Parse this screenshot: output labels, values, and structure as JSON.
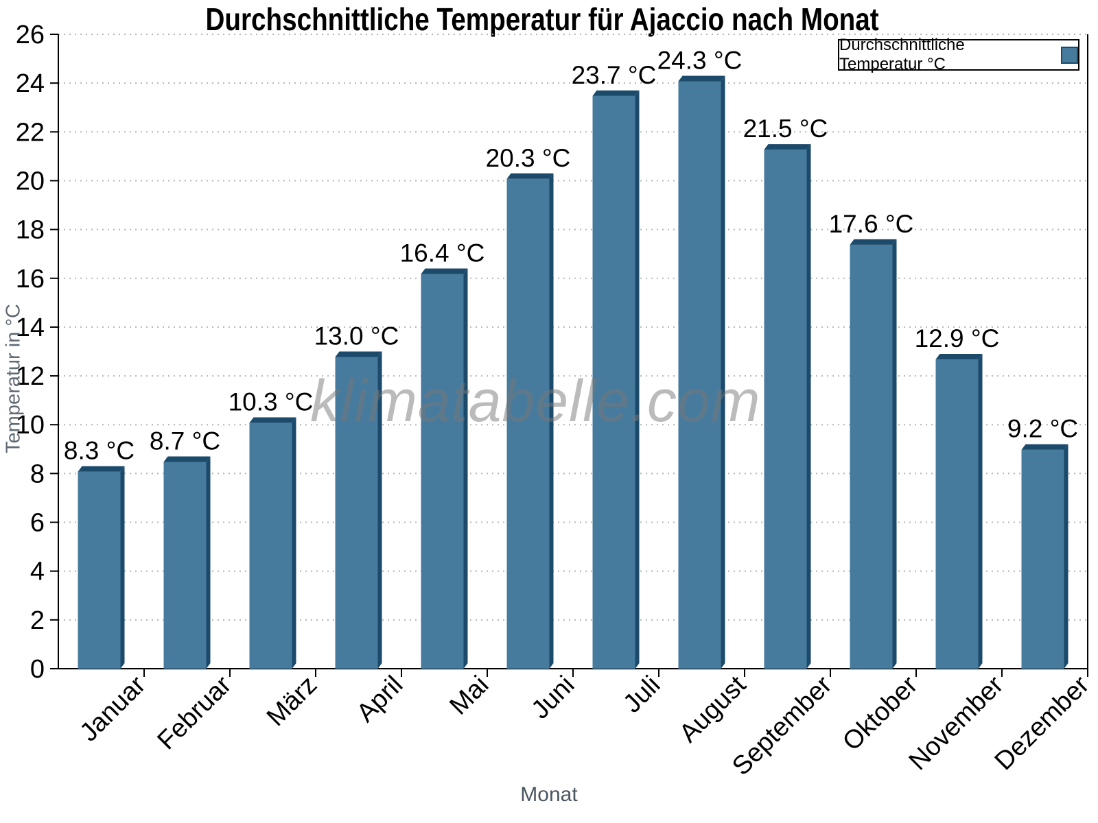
{
  "title": "Durchschnittliche Temperatur für Ajaccio nach Monat",
  "watermark": "klimatabelle.com",
  "legend": {
    "label": "Durchschnittliche Temperatur °C"
  },
  "axes": {
    "x_title": "Monat",
    "y_title": "Temperatur in °C"
  },
  "chart_data": {
    "type": "bar",
    "title": "Durchschnittliche Temperatur für Ajaccio nach Monat",
    "categories": [
      "Januar",
      "Februar",
      "März",
      "April",
      "Mai",
      "Juni",
      "Juli",
      "August",
      "September",
      "Oktober",
      "November",
      "Dezember"
    ],
    "series": [
      {
        "name": "Durchschnittliche Temperatur °C",
        "values": [
          8.3,
          8.7,
          10.3,
          13.0,
          16.4,
          20.3,
          23.7,
          24.3,
          21.5,
          17.6,
          12.9,
          9.2
        ]
      }
    ],
    "value_suffix": " °C",
    "xlabel": "Monat",
    "ylabel": "Temperatur in °C",
    "ylim": [
      0,
      26
    ],
    "ytick_step": 2,
    "grid": "horizontal-dotted",
    "legend_position": "top-right",
    "colors": {
      "bar_face": "#477B9D",
      "bar_edge": "#1B4A6B",
      "grid": "#B4B4B4",
      "axis": "#000000",
      "tick_label": "#000000",
      "axis_title": "#5F6A74",
      "watermark_gray": "#787878"
    }
  }
}
